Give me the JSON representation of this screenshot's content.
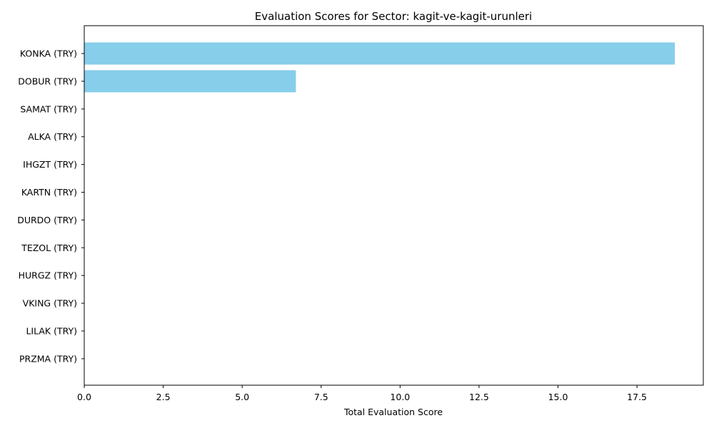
{
  "chart_data": {
    "type": "bar",
    "orientation": "horizontal",
    "title": "Evaluation Scores for Sector: kagit-ve-kagit-urunleri",
    "xlabel": "Total Evaluation Score",
    "ylabel": "",
    "categories": [
      "KONKA (TRY)",
      "DOBUR (TRY)",
      "SAMAT (TRY)",
      "ALKA (TRY)",
      "IHGZT (TRY)",
      "KARTN (TRY)",
      "DURDO (TRY)",
      "TEZOL (TRY)",
      "HURGZ (TRY)",
      "VKING (TRY)",
      "LILAK (TRY)",
      "PRZMA (TRY)"
    ],
    "values": [
      18.7,
      6.7,
      0,
      0,
      0,
      0,
      0,
      0,
      0,
      0,
      0,
      0
    ],
    "xlim": [
      0,
      19.6
    ],
    "xticks": [
      0,
      2.5,
      5,
      7.5,
      10,
      12.5,
      15,
      17.5
    ],
    "xtick_labels": [
      "0.0",
      "2.5",
      "5.0",
      "7.5",
      "10.0",
      "12.5",
      "15.0",
      "17.5"
    ],
    "grid": false,
    "bar_color": "#87ceeb"
  }
}
